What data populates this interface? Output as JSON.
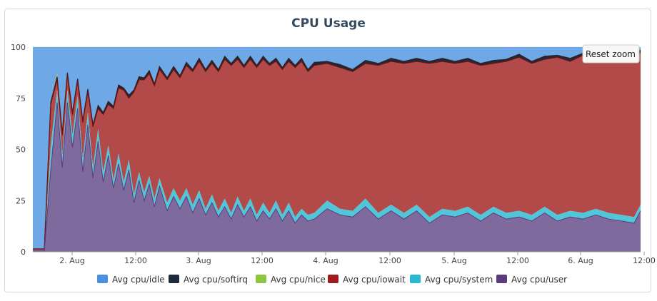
{
  "chart_data": {
    "type": "area",
    "title": "CPU Usage",
    "reset_zoom_label": "Reset zoom",
    "y_ticks": [
      "100",
      "75",
      "50",
      "25",
      "0"
    ],
    "ylim": [
      0,
      100
    ],
    "x_ticks": [
      "2. Aug",
      "12:00",
      "3. Aug",
      "12:00",
      "4. Aug",
      "12:00",
      "5. Aug",
      "12:00",
      "6. Aug",
      "12:00"
    ],
    "stacking": "percent",
    "legend_position": "bottom",
    "series": [
      {
        "name": "Avg cpu/idle",
        "color": "#4a90e2"
      },
      {
        "name": "Avg cpu/softirq",
        "color": "#1c2b3a"
      },
      {
        "name": "Avg cpu/nice",
        "color": "#8dc63f"
      },
      {
        "name": "Avg cpu/iowait",
        "color": "#a01c1c"
      },
      {
        "name": "Avg cpu/system",
        "color": "#2ab7d0"
      },
      {
        "name": "Avg cpu/user",
        "color": "#5b3b7e"
      }
    ],
    "points": {
      "x": [
        0,
        0.09,
        0.14,
        0.19,
        0.23,
        0.27,
        0.31,
        0.35,
        0.39,
        0.43,
        0.47,
        0.51,
        0.55,
        0.59,
        0.63,
        0.67,
        0.71,
        0.75,
        0.79,
        0.83,
        0.87,
        0.91,
        0.95,
        0.99,
        1.05,
        1.1,
        1.15,
        1.2,
        1.25,
        1.3,
        1.35,
        1.4,
        1.45,
        1.5,
        1.55,
        1.6,
        1.65,
        1.7,
        1.75,
        1.8,
        1.85,
        1.9,
        1.95,
        2.0,
        2.05,
        2.1,
        2.15,
        2.2,
        2.3,
        2.4,
        2.5,
        2.6,
        2.7,
        2.8,
        2.9,
        3.0,
        3.1,
        3.2,
        3.3,
        3.4,
        3.5,
        3.6,
        3.7,
        3.8,
        3.9,
        4.0,
        4.1,
        4.2,
        4.3,
        4.4,
        4.5,
        4.6,
        4.7,
        4.75
      ],
      "user": [
        0.5,
        0.5,
        40,
        73,
        41,
        73,
        51,
        70,
        39,
        62,
        36,
        54,
        34,
        47,
        31,
        43,
        30,
        40,
        24,
        35,
        25,
        33,
        22,
        32,
        20,
        27,
        21,
        27,
        19,
        26,
        18,
        24,
        17,
        22,
        16,
        23,
        17,
        22,
        15,
        20,
        16,
        21,
        15,
        20,
        14,
        18,
        15,
        16,
        21,
        18,
        17,
        22,
        16,
        20,
        16,
        20,
        14,
        18,
        17,
        19,
        15,
        19,
        16,
        17,
        15,
        19,
        15,
        17,
        16,
        18,
        16,
        15,
        14,
        20
      ],
      "system": [
        0.3,
        0.3,
        12,
        6,
        6,
        6,
        6,
        6,
        6,
        6,
        5,
        6,
        5,
        5,
        4,
        5,
        4,
        5,
        4,
        4,
        4,
        4,
        4,
        4,
        4,
        4,
        4,
        4,
        4,
        4,
        3,
        4,
        3,
        4,
        3,
        4,
        3,
        4,
        3,
        4,
        3,
        4,
        3,
        4,
        3,
        3,
        3,
        3,
        4,
        3,
        3,
        4,
        3,
        3,
        3,
        3,
        3,
        3,
        3,
        3,
        3,
        3,
        3,
        3,
        3,
        3,
        3,
        3,
        3,
        3,
        3,
        3,
        3,
        3
      ],
      "iowait": [
        0.5,
        0.5,
        20,
        5,
        10,
        7,
        10,
        7,
        18,
        10,
        20,
        10,
        28,
        20,
        35,
        32,
        45,
        30,
        50,
        45,
        55,
        50,
        55,
        53,
        60,
        58,
        60,
        60,
        65,
        63,
        67,
        64,
        68,
        68,
        72,
        67,
        70,
        68,
        72,
        70,
        72,
        68,
        71,
        69,
        73,
        72,
        70,
        72,
        67,
        69,
        68,
        66,
        72,
        70,
        73,
        70,
        75,
        72,
        72,
        71,
        73,
        70,
        74,
        75,
        74,
        72,
        77,
        73,
        77,
        74,
        75,
        76,
        80,
        74
      ],
      "softirq": [
        0.1,
        0.1,
        1,
        1.5,
        1,
        1.5,
        1,
        1.5,
        1,
        1.5,
        1,
        1.5,
        1,
        1.5,
        1,
        1.5,
        1,
        1.5,
        1,
        1.5,
        1,
        1.5,
        1,
        1.5,
        1,
        1.5,
        1,
        1.5,
        1,
        1.5,
        1,
        1.5,
        1,
        1.5,
        1,
        1.5,
        1,
        1.5,
        1,
        1.5,
        1,
        1.5,
        1,
        1.5,
        1,
        1.5,
        1,
        1.5,
        1,
        1.5,
        1,
        1.5,
        1,
        1.5,
        1,
        1.5,
        1,
        1.5,
        1,
        1.5,
        1,
        1.5,
        1,
        1.5,
        1,
        1.5,
        1,
        1.5,
        1,
        1.5,
        1,
        1.5,
        1,
        1.5
      ],
      "nice": [
        0,
        0,
        0,
        2,
        0,
        0,
        0,
        0,
        0,
        0,
        0,
        0,
        0,
        0,
        0,
        0,
        0,
        0,
        0,
        0,
        0,
        0,
        0,
        0,
        0,
        0,
        0,
        0,
        0,
        0,
        0,
        0,
        0,
        0,
        0,
        0,
        0,
        0,
        0,
        0,
        0,
        0,
        0,
        0,
        0,
        0,
        0,
        0,
        0,
        0,
        0,
        0,
        0,
        0,
        0,
        0,
        0,
        0,
        0,
        0,
        0,
        0,
        0,
        0,
        0,
        0,
        0,
        0,
        0,
        0,
        0,
        0,
        0,
        0
      ]
    }
  }
}
